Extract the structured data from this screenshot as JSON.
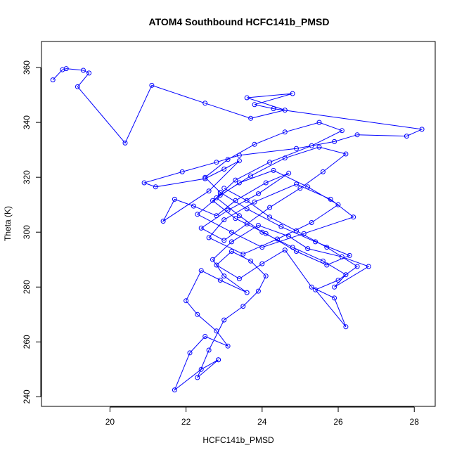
{
  "chart_data": {
    "type": "line",
    "title": "ATOM4 Southbound HCFC141b_PMSD",
    "xlabel": "HCFC141b_PMSD",
    "ylabel": "Theta (K)",
    "xlim": [
      18.2,
      28.55
    ],
    "ylim": [
      236.5,
      369.5
    ],
    "xticks": [
      20,
      22,
      24,
      26,
      28
    ],
    "yticks": [
      240,
      260,
      280,
      300,
      320,
      340,
      360
    ],
    "grid": false,
    "legend": "none",
    "marker": "open-circle",
    "color": "#0000ff",
    "series": [
      {
        "x": [
          18.5,
          18.75,
          18.85,
          19.3,
          19.45,
          19.15,
          20.4,
          21.1,
          22.5,
          23.7,
          24.6,
          23.6,
          24.8,
          23.8,
          24.3,
          28.2,
          27.8,
          26.5,
          25.9,
          24.9,
          23.4,
          22.8,
          21.9,
          20.9,
          21.2,
          22.5,
          23.0,
          23.4,
          22.6,
          21.4,
          21.7,
          22.2,
          22.8,
          23.3,
          24.1,
          24.7,
          23.9,
          23.1,
          22.4,
          23.0,
          23.6,
          24.2,
          25.0,
          25.6,
          26.2,
          25.5,
          24.6,
          23.7,
          22.9,
          22.3,
          23.2,
          24.0,
          25.1,
          26.4,
          25.8,
          24.9,
          23.8,
          23.0,
          22.6,
          23.5,
          24.4,
          25.3,
          26.0,
          25.2,
          24.3,
          23.4,
          22.7,
          23.3,
          24.1,
          24.9,
          25.7,
          26.3,
          25.4,
          24.5,
          23.6,
          22.9,
          22.5,
          23.1,
          23.8,
          24.6,
          25.5,
          26.1,
          25.3,
          24.2,
          23.3,
          22.8,
          23.4,
          24.0,
          24.8,
          25.6,
          26.2,
          25.9,
          26.8,
          26.1,
          25.2,
          24.7,
          23.9,
          23.2,
          22.7,
          23.0,
          23.6,
          22.9,
          22.4,
          22.0,
          22.3,
          22.8,
          23.1,
          22.5,
          22.1,
          21.7,
          22.4,
          22.85,
          22.85,
          22.3,
          22.6,
          23.0,
          23.5,
          23.9,
          24.1,
          23.7,
          23.2,
          22.8,
          23.4,
          24.0,
          24.6,
          25.3,
          25.9,
          26.2,
          25.4,
          26.0,
          26.5,
          25.7,
          24.9,
          24.2,
          23.6,
          23.0
        ],
        "y": [
          355.5,
          359.2,
          359.6,
          359.0,
          358.0,
          353.0,
          332.5,
          353.5,
          347.0,
          341.5,
          344.5,
          349.0,
          350.5,
          346.5,
          345.0,
          337.5,
          335.0,
          335.5,
          333.0,
          330.5,
          328.0,
          325.5,
          322.0,
          318.0,
          316.5,
          319.5,
          323.0,
          326.0,
          315.0,
          304.0,
          312.0,
          309.5,
          306.0,
          311.5,
          318.0,
          321.5,
          314.0,
          308.0,
          301.5,
          297.0,
          303.0,
          309.0,
          316.0,
          322.0,
          328.5,
          331.0,
          327.0,
          320.5,
          313.5,
          306.5,
          300.0,
          294.5,
          299.5,
          305.5,
          312.0,
          317.5,
          311.0,
          304.5,
          298.0,
          292.0,
          297.5,
          303.5,
          310.0,
          316.5,
          322.5,
          318.0,
          311.5,
          305.0,
          299.5,
          293.0,
          288.0,
          291.5,
          296.5,
          302.0,
          308.5,
          314.5,
          320.0,
          326.5,
          332.0,
          336.5,
          340.0,
          337.0,
          331.5,
          325.5,
          319.0,
          312.5,
          306.0,
          300.0,
          294.5,
          289.5,
          284.5,
          280.0,
          287.5,
          291.0,
          294.0,
          298.5,
          302.5,
          296.5,
          290.0,
          284.0,
          278.0,
          282.5,
          286.0,
          275.0,
          270.0,
          264.0,
          258.5,
          262.0,
          256.0,
          242.5,
          250.0,
          253.5,
          253.5,
          247.0,
          257.0,
          268.0,
          273.0,
          278.5,
          284.0,
          289.5,
          293.0,
          288.0,
          283.0,
          288.5,
          293.5,
          280.0,
          276.0,
          265.5,
          279.0,
          282.5,
          287.5,
          294.5,
          300.5,
          305.5,
          311.5,
          316.0
        ]
      }
    ]
  }
}
